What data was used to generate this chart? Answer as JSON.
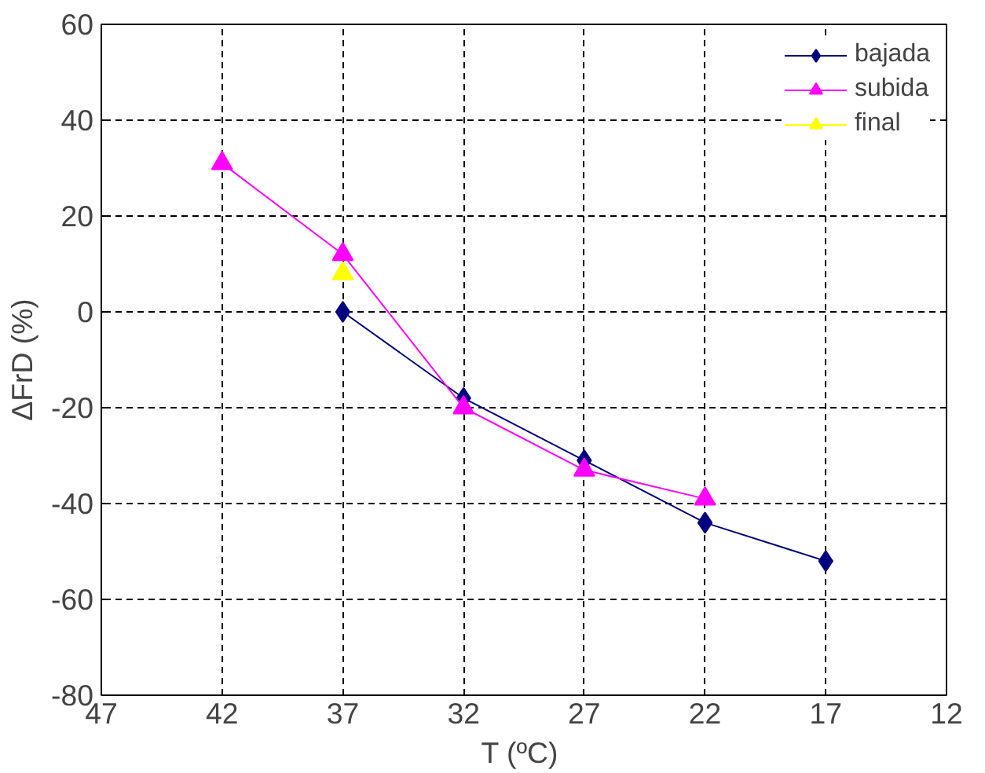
{
  "chart_data": {
    "type": "line",
    "xlabel": "T  (ºC)",
    "ylabel": "ΔFrD (%)",
    "xlim": [
      47,
      12
    ],
    "xticks": [
      47,
      42,
      37,
      32,
      27,
      22,
      17,
      12
    ],
    "ylim": [
      -80,
      60
    ],
    "yticks": [
      -80,
      -60,
      -40,
      -20,
      0,
      20,
      40,
      60
    ],
    "grid": true,
    "legend": "top right",
    "line_style": "solid",
    "series": [
      {
        "name": "bajada",
        "color": "#000080",
        "marker": "diamond",
        "x": [
          37,
          32,
          27,
          22,
          17
        ],
        "values": [
          0,
          -18,
          -31,
          -44,
          -52
        ]
      },
      {
        "name": "subida",
        "color": "#ff00ff",
        "marker": "triangle",
        "x": [
          42,
          37,
          32,
          27,
          22
        ],
        "values": [
          31,
          12,
          -20,
          -33,
          -39
        ]
      },
      {
        "name": "final",
        "color": "#ffff00",
        "marker": "triangle",
        "x": [
          37
        ],
        "values": [
          8
        ]
      }
    ]
  }
}
